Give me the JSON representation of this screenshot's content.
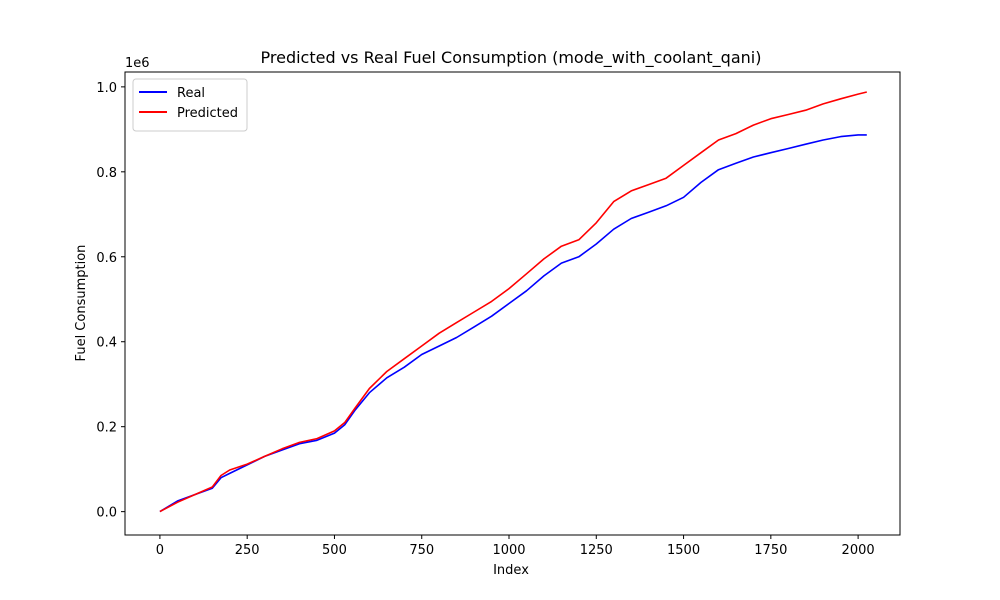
{
  "chart_data": {
    "type": "line",
    "title": "Predicted vs Real Fuel Consumption (mode_with_coolant_qani)",
    "xlabel": "Index",
    "ylabel": "Fuel Consumption",
    "y_offset_label": "1e6",
    "xlim": [
      -100,
      2120
    ],
    "ylim": [
      -0.055,
      1.035
    ],
    "x_ticks": [
      0,
      250,
      500,
      750,
      1000,
      1250,
      1500,
      1750,
      2000
    ],
    "x_tick_labels": [
      "0",
      "250",
      "500",
      "750",
      "1000",
      "1250",
      "1500",
      "1750",
      "2000"
    ],
    "y_ticks": [
      0.0,
      0.2,
      0.4,
      0.6,
      0.8,
      1.0
    ],
    "y_tick_labels": [
      "0.0",
      "0.2",
      "0.4",
      "0.6",
      "0.8",
      "1.0"
    ],
    "grid": false,
    "legend_position": "upper-left",
    "x": [
      0,
      50,
      100,
      150,
      175,
      200,
      250,
      300,
      350,
      400,
      450,
      500,
      530,
      560,
      600,
      650,
      700,
      750,
      800,
      850,
      900,
      950,
      1000,
      1050,
      1100,
      1150,
      1200,
      1250,
      1300,
      1350,
      1400,
      1450,
      1500,
      1550,
      1600,
      1650,
      1700,
      1750,
      1800,
      1850,
      1900,
      1950,
      2000,
      2025
    ],
    "series": [
      {
        "name": "Real",
        "color": "#0000ff",
        "values": [
          0.0,
          0.025,
          0.04,
          0.055,
          0.08,
          0.09,
          0.11,
          0.13,
          0.145,
          0.16,
          0.168,
          0.185,
          0.205,
          0.24,
          0.28,
          0.315,
          0.34,
          0.37,
          0.39,
          0.41,
          0.435,
          0.46,
          0.49,
          0.52,
          0.555,
          0.585,
          0.6,
          0.63,
          0.665,
          0.69,
          0.705,
          0.72,
          0.74,
          0.775,
          0.805,
          0.82,
          0.835,
          0.845,
          0.855,
          0.865,
          0.875,
          0.883,
          0.887,
          0.887
        ]
      },
      {
        "name": "Predicted",
        "color": "#ff0000",
        "values": [
          0.0,
          0.022,
          0.04,
          0.058,
          0.085,
          0.098,
          0.112,
          0.13,
          0.148,
          0.163,
          0.172,
          0.19,
          0.21,
          0.245,
          0.29,
          0.33,
          0.36,
          0.39,
          0.42,
          0.445,
          0.47,
          0.495,
          0.525,
          0.56,
          0.595,
          0.625,
          0.64,
          0.68,
          0.73,
          0.755,
          0.77,
          0.785,
          0.815,
          0.845,
          0.875,
          0.89,
          0.91,
          0.925,
          0.935,
          0.945,
          0.96,
          0.972,
          0.983,
          0.988
        ]
      }
    ]
  }
}
